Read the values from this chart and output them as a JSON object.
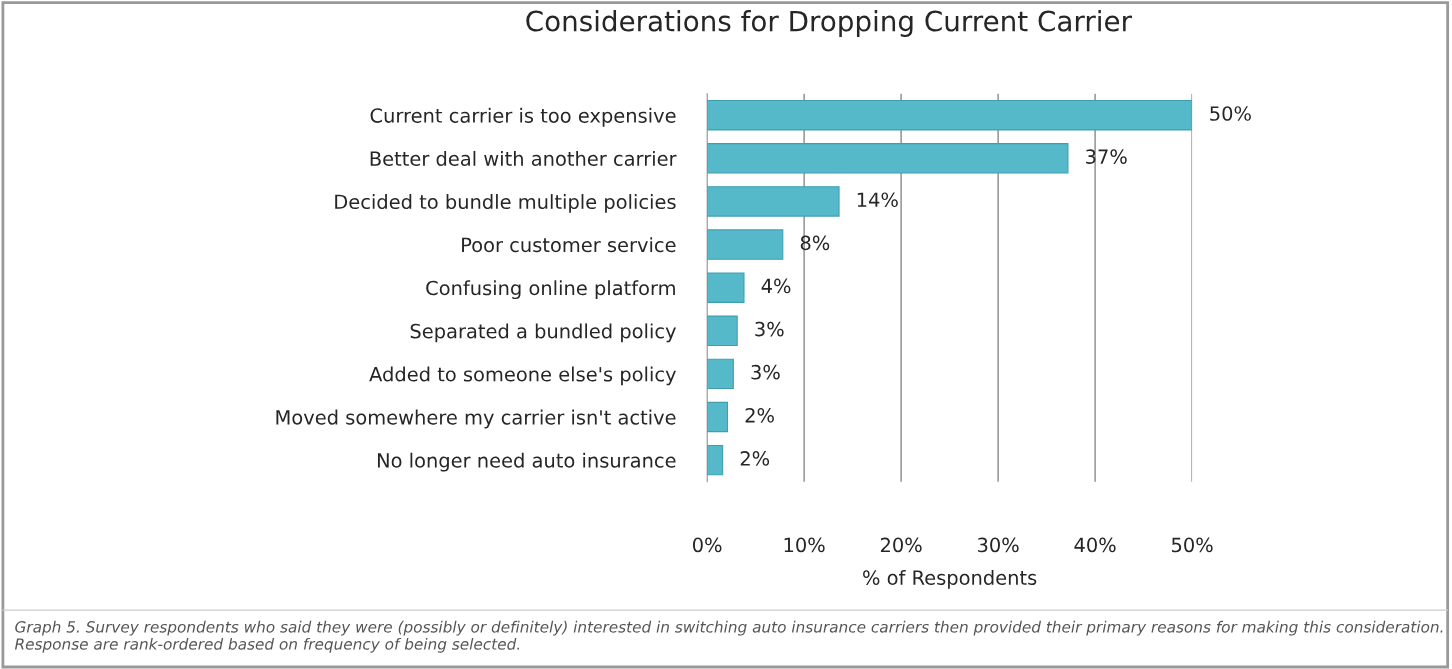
{
  "chart_data": {
    "type": "bar",
    "orientation": "horizontal",
    "title": "Considerations for Dropping Current Carrier",
    "xlabel": "% of Respondents",
    "categories": [
      "Current carrier is too expensive",
      "Better deal with another carrier",
      "Decided to bundle multiple policies",
      "Poor customer service",
      "Confusing online platform",
      "Separated a bundled policy",
      "Added to someone else's policy",
      "Moved somewhere my carrier isn't active",
      "No longer need auto insurance"
    ],
    "values": [
      50,
      37.2,
      13.6,
      7.8,
      3.8,
      3.1,
      2.7,
      2.1,
      1.6
    ],
    "value_labels": [
      "50%",
      "37%",
      "14%",
      "8%",
      "4%",
      "3%",
      "3%",
      "2%",
      "2%"
    ],
    "color": "#56b9c9",
    "xlim": [
      0,
      50
    ],
    "xticks": [
      {
        "value": 0,
        "label": "0%"
      },
      {
        "value": 10,
        "label": "10%"
      },
      {
        "value": 20,
        "label": "20%"
      },
      {
        "value": 30,
        "label": "30%"
      },
      {
        "value": 40,
        "label": "40%"
      },
      {
        "value": 50,
        "label": "50%"
      }
    ],
    "grid": "x",
    "annotations": [
      "Graph 5. Survey respondents who said they were (possibly or definitely) interested in switching auto insurance carriers then provided their primary reasons for making this consideration. Response are rank-ordered based on frequency of being selected."
    ]
  }
}
